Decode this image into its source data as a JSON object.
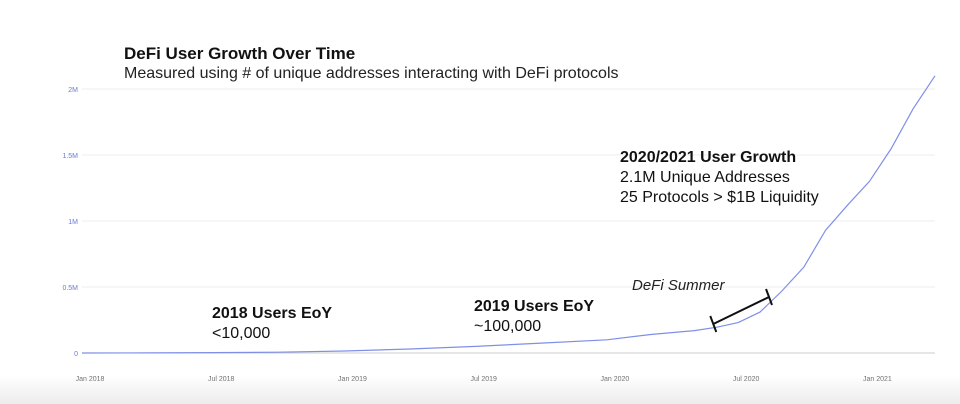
{
  "header": {
    "title": "DeFi User Growth Over Time",
    "subtitle": "Measured using # of unique addresses interacting with DeFi protocols"
  },
  "annotations": {
    "users_2018": {
      "head": "2018 Users EoY",
      "value": "<10,000"
    },
    "users_2019": {
      "head": "2019 Users EoY",
      "value": "~100,000"
    },
    "growth": {
      "head": "2020/2021 User Growth",
      "line1": "2.1M Unique Addresses",
      "line2": "25 Protocols > $1B Liquidity"
    },
    "defi_summer": "DeFi Summer"
  },
  "colors": {
    "line": "#7f8fe8",
    "axis_text": "#6b7ad6",
    "grid": "#eeeeee"
  },
  "chart_data": {
    "type": "line",
    "title": "DeFi User Growth Over Time",
    "subtitle": "Measured using # of unique addresses interacting with DeFi protocols",
    "xlabel": "",
    "ylabel": "",
    "x_ticks": [
      "Jan 2018",
      "Jul 2018",
      "Jan 2019",
      "Jul 2019",
      "Jan 2020",
      "Jul 2020",
      "Jan 2021"
    ],
    "y_ticks": [
      "0",
      "0.5M",
      "1M",
      "1.5M",
      "2M"
    ],
    "ylim": [
      0,
      2000000
    ],
    "xlim": [
      "2018-01",
      "2021-04"
    ],
    "grid": true,
    "legend": "none",
    "series": [
      {
        "x": [
          "2018-01",
          "2018-04",
          "2018-07",
          "2018-10",
          "2019-01",
          "2019-04",
          "2019-07",
          "2019-10",
          "2020-01",
          "2020-03",
          "2020-05",
          "2020-06",
          "2020-07",
          "2020-08",
          "2020-09",
          "2020-10",
          "2020-11",
          "2020-12",
          "2021-01",
          "2021-02",
          "2021-03",
          "2021-04"
        ],
        "values": [
          0,
          1000,
          3000,
          6000,
          15000,
          30000,
          50000,
          75000,
          100000,
          140000,
          170000,
          195000,
          230000,
          310000,
          470000,
          650000,
          930000,
          1120000,
          1300000,
          1550000,
          1850000,
          2100000
        ]
      }
    ],
    "annotations": [
      {
        "text": "DeFi Summer",
        "x_range": [
          "2020-06",
          "2020-08"
        ]
      }
    ]
  }
}
